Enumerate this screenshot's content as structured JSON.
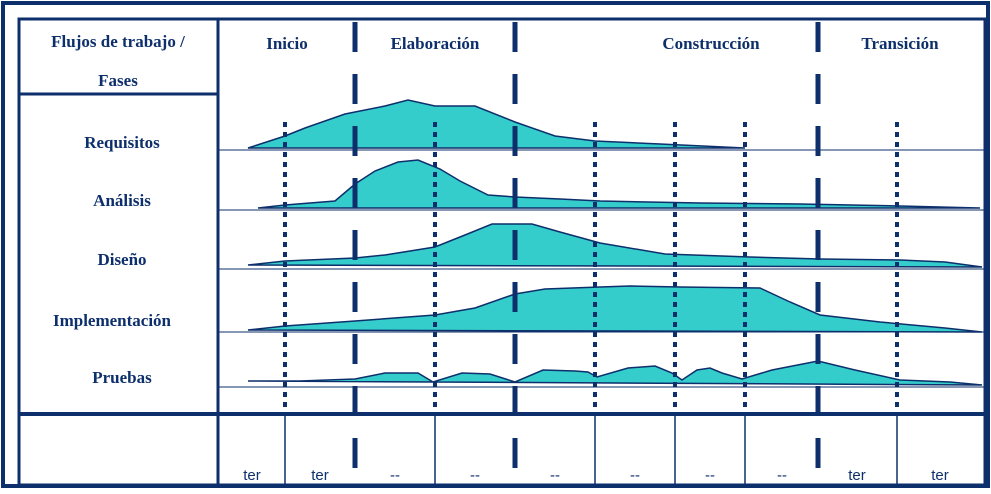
{
  "header": {
    "title_line1": "Flujos de trabajo /",
    "title_line2": "Fases"
  },
  "phases": [
    "Inicio",
    "Elaboración",
    "Construcción",
    "Transición"
  ],
  "workflows": [
    "Requisitos",
    "Análisis",
    "Diseño",
    "Implementación",
    "Pruebas"
  ],
  "iterations": [
    "ter",
    "ter",
    "--",
    "--",
    "--",
    "--",
    "--",
    "--",
    "ter",
    "ter"
  ],
  "colors": {
    "frame": "#0d2f6b",
    "fill": "#35cccc",
    "text": "#0d2f6b",
    "background": "#ffffff"
  }
}
